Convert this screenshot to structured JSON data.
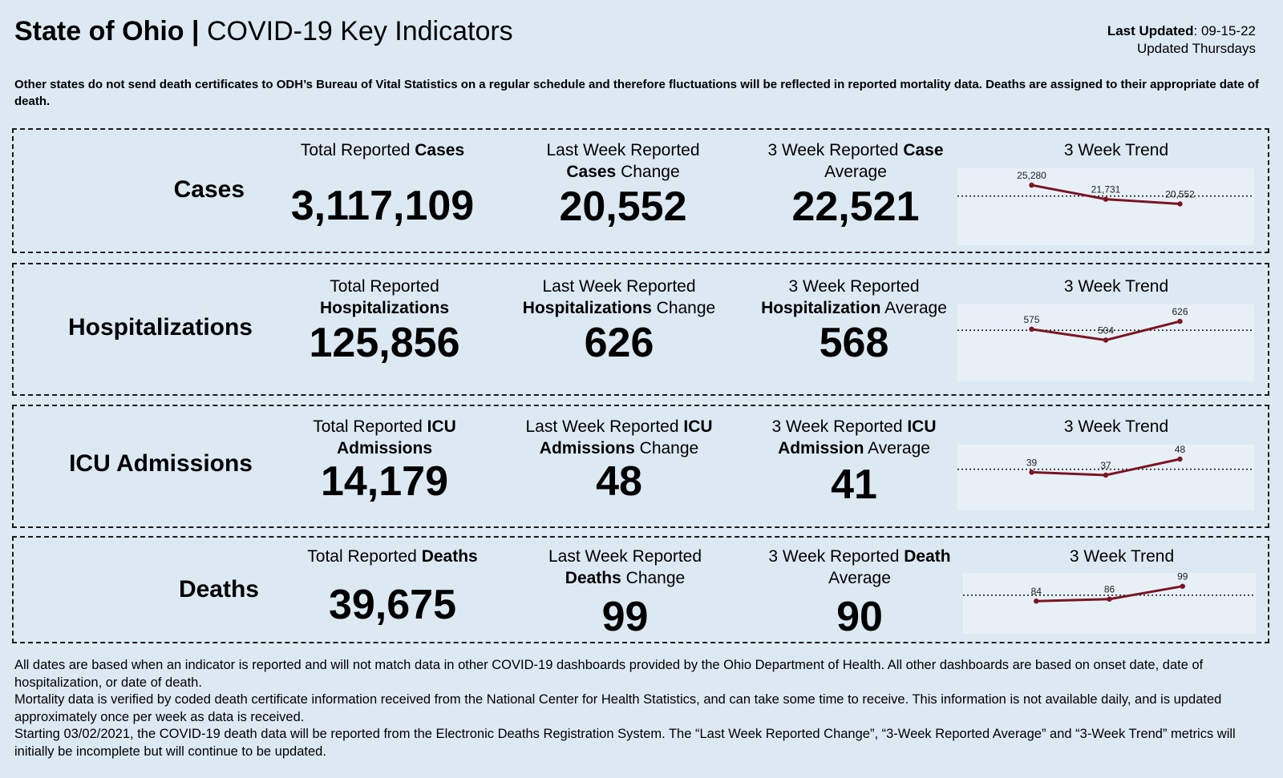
{
  "header": {
    "state": "State of Ohio |",
    "title": "COVID-19 Key Indicators",
    "last_updated_label": "Last Updated",
    "last_updated_value": ": 09-15-22",
    "updated_frequency": "Updated Thursdays"
  },
  "notice": "Other states do not send death certificates to ODH’s Bureau of Vital Statistics on a regular schedule and therefore fluctuations will be reflected in reported mortality data. Deaths are assigned to their appropriate date of death.",
  "rows": [
    {
      "label": "Cases",
      "total": {
        "pre": "Total Reported ",
        "bold": "Cases",
        "line2_pre": "",
        "line2_bold": "",
        "line2_post": "",
        "value": "3,117,109"
      },
      "change": {
        "line1": "Last Week Reported",
        "l2_bold": "Cases",
        "l2_post": " Change",
        "value": "20,552"
      },
      "avg": {
        "l1_pre": "3 Week Reported ",
        "l1_bold": "Case",
        "l2_bold": "",
        "l2_post": "Average",
        "value": "22,521"
      },
      "trend_title": "3 Week Trend",
      "trend_labels": [
        "25,280",
        "21,731",
        "20,552"
      ]
    },
    {
      "label": "Hospitalizations",
      "total": {
        "pre": "Total Reported",
        "bold": "",
        "line2_bold": "Hospitalizations",
        "value": "125,856"
      },
      "change": {
        "line1": "Last Week Reported",
        "l2_bold": "Hospitalizations",
        "l2_post": " Change",
        "value": "626"
      },
      "avg": {
        "l1_pre": "3 Week Reported",
        "l1_bold": "",
        "l2_bold": "Hospitalization",
        "l2_post": " Average",
        "value": "568"
      },
      "trend_title": "3 Week Trend",
      "trend_labels": [
        "575",
        "504",
        "626"
      ]
    },
    {
      "label": "ICU Admissions",
      "total": {
        "pre": "Total Reported ",
        "bold": "ICU",
        "line2_bold": "Admissions",
        "value": "14,179"
      },
      "change": {
        "line1_pre": "Last Week Reported ",
        "line1_bold": "ICU",
        "l2_bold": "Admissions",
        "l2_post": " Change",
        "value": "48"
      },
      "avg": {
        "l1_pre": "3 Week Reported ",
        "l1_bold": "ICU",
        "l2_bold": "Admission",
        "l2_post": " Average",
        "value": "41"
      },
      "trend_title": "3 Week Trend",
      "trend_labels": [
        "39",
        "37",
        "48"
      ]
    },
    {
      "label": "Deaths",
      "total": {
        "pre": "Total Reported ",
        "bold": "Deaths",
        "value": "39,675"
      },
      "change": {
        "line1": "Last Week Reported",
        "l2_bold": "Deaths",
        "l2_post": " Change",
        "value": "99"
      },
      "avg": {
        "l1_pre": "3 Week Reported ",
        "l1_bold": "Death",
        "l2_bold": "",
        "l2_post": "Average",
        "value": "90"
      },
      "trend_title": "3 Week Trend",
      "trend_labels": [
        "84",
        "86",
        "99"
      ]
    }
  ],
  "chart_data": [
    {
      "type": "line",
      "title": "3 Week Trend",
      "x": [
        1,
        2,
        3
      ],
      "values": [
        25280,
        21731,
        20552
      ],
      "average_line": 22521,
      "line_color": "#7b1424"
    },
    {
      "type": "line",
      "title": "3 Week Trend",
      "x": [
        1,
        2,
        3
      ],
      "values": [
        575,
        504,
        626
      ],
      "average_line": 568,
      "line_color": "#7b1424"
    },
    {
      "type": "line",
      "title": "3 Week Trend",
      "x": [
        1,
        2,
        3
      ],
      "values": [
        39,
        37,
        48
      ],
      "average_line": 41,
      "line_color": "#7b1424"
    },
    {
      "type": "line",
      "title": "3 Week Trend",
      "x": [
        1,
        2,
        3
      ],
      "values": [
        84,
        86,
        99
      ],
      "average_line": 90,
      "line_color": "#7b1424"
    }
  ],
  "footer": [
    "All dates are based when an indicator is reported and will not match data in other COVID-19 dashboards provided by the Ohio Department of Health. All other dashboards are based on onset date, date of hospitalization, or date of death.",
    "Mortality data is verified by coded death certificate information received from the National Center for Health Statistics, and can take some time to receive. This information is not available daily, and is updated approximately once per week as data is received.",
    "Starting 03/02/2021, the COVID-19 death data will be reported from the Electronic Deaths Registration System. The “Last Week Reported Change”, “3-Week Reported Average” and “3-Week Trend” metrics will initially be incomplete but will continue to be updated."
  ]
}
